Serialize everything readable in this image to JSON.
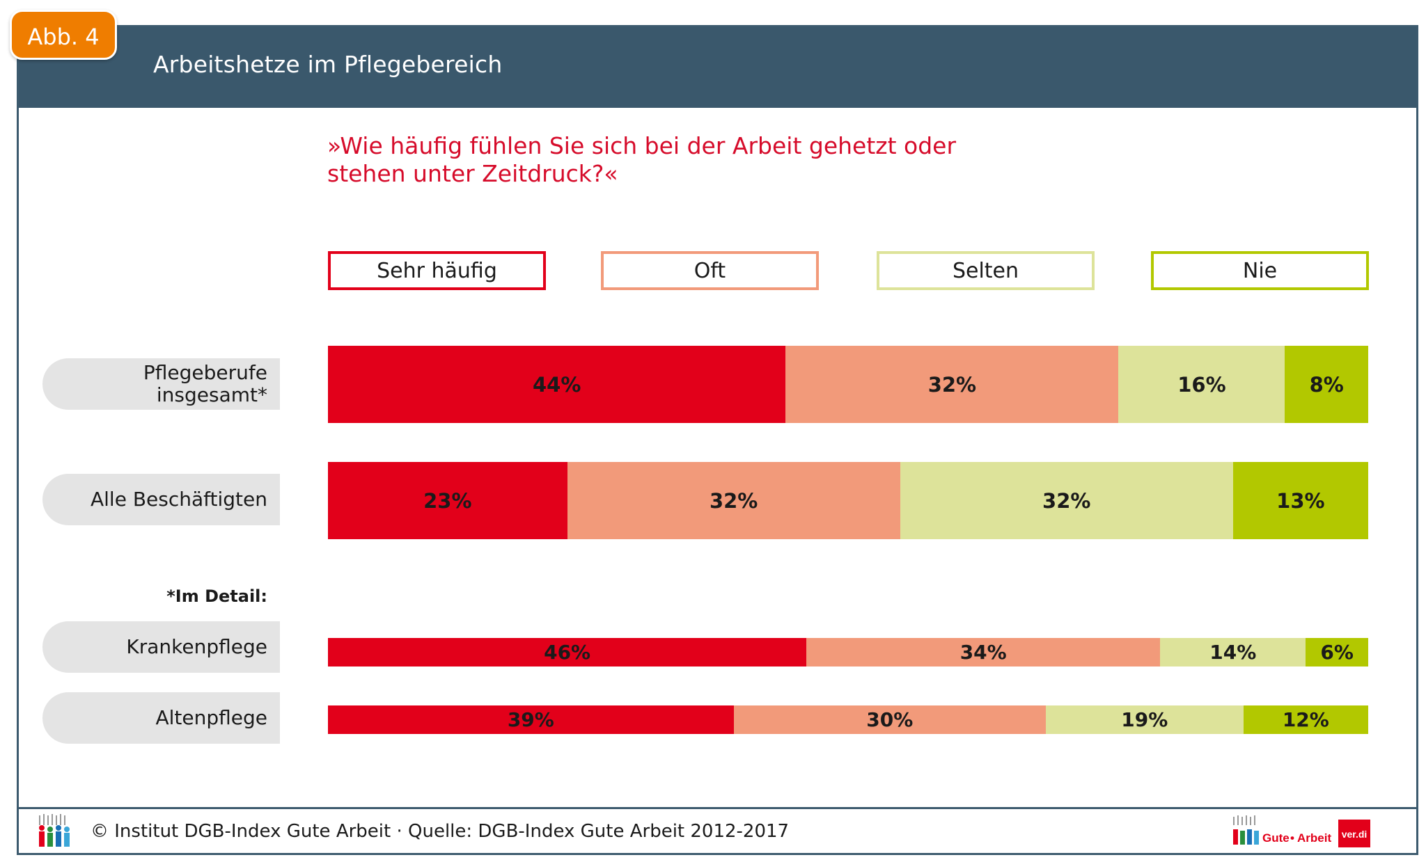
{
  "badge": "Abb. 4",
  "title": "Arbeitshetze im Pflegebereich",
  "colors": {
    "header": "#3a586c",
    "badge": "#ef7d00",
    "question": "#d60b2a",
    "sehr_haeufig": "#e2001a",
    "oft": "#f29a7a",
    "selten": "#dde39a",
    "nie": "#b2c800"
  },
  "chart_data": {
    "type": "bar",
    "orientation": "horizontal-stacked-100",
    "title": "»Wie häufig fühlen Sie sich bei der Arbeit gehetzt oder stehen unter Zeitdruck?«",
    "legend": [
      "Sehr häufig",
      "Oft",
      "Selten",
      "Nie"
    ],
    "categories": [
      "Pflegeberufe insgesamt*",
      "Alle Beschäftigten",
      "Krankenpflege",
      "Altenpflege"
    ],
    "series": [
      {
        "name": "Sehr häufig",
        "values": [
          44,
          23,
          46,
          39
        ]
      },
      {
        "name": "Oft",
        "values": [
          32,
          32,
          34,
          30
        ]
      },
      {
        "name": "Selten",
        "values": [
          16,
          32,
          14,
          19
        ]
      },
      {
        "name": "Nie",
        "values": [
          8,
          13,
          6,
          12
        ]
      }
    ],
    "unit": "%",
    "detail_note": "*Im Detail:"
  },
  "question_lines": [
    "»Wie häufig fühlen Sie sich bei der Arbeit gehetzt oder",
    "stehen unter Zeitdruck?«"
  ],
  "row_labels": {
    "r0_line1": "Pflegeberufe",
    "r0_line2": "insgesamt*",
    "r1": "Alle Beschäftigten",
    "r2": "Krankenpflege",
    "r3": "Altenpflege"
  },
  "footer": {
    "text": "© Institut DGB-Index Gute Arbeit · Quelle: DGB-Index Gute Arbeit 2012-2017",
    "logo_left": "Gute",
    "logo_dot": "•",
    "logo_right": "Arbeit",
    "verdi": "ver.di"
  }
}
